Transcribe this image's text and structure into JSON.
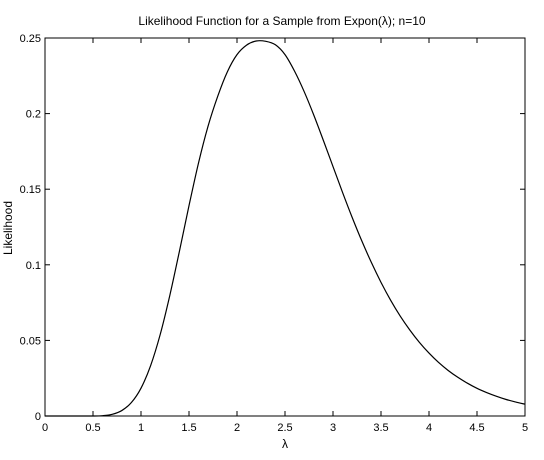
{
  "chart_data": {
    "type": "line",
    "title": "Likelihood Function for a Sample from Expon(λ); n=10",
    "xlabel": "λ",
    "ylabel": "Likelihood",
    "xlim": [
      0,
      5
    ],
    "ylim": [
      0,
      0.25
    ],
    "xticks": [
      0,
      0.5,
      1,
      1.5,
      2,
      2.5,
      3,
      3.5,
      4,
      4.5,
      5
    ],
    "xtick_labels": [
      "0",
      "0.5",
      "1",
      "1.5",
      "2",
      "2.5",
      "3",
      "3.5",
      "4",
      "4.5",
      "5"
    ],
    "yticks": [
      0,
      0.05,
      0.1,
      0.15,
      0.2,
      0.25
    ],
    "ytick_labels": [
      "0",
      "0.05",
      "0.1",
      "0.15",
      "0.2",
      "0.25"
    ],
    "grid": false,
    "line_color": "#000000",
    "series": [
      {
        "name": "",
        "x": [
          0.0,
          0.25,
          0.5,
          0.6,
          0.7,
          0.8,
          0.9,
          1.0,
          1.1,
          1.2,
          1.3,
          1.4,
          1.5,
          1.6,
          1.7,
          1.8,
          1.9,
          2.0,
          2.1,
          2.2,
          2.3,
          2.4,
          2.5,
          2.6,
          2.7,
          2.8,
          2.9,
          3.0,
          3.1,
          3.2,
          3.3,
          3.4,
          3.5,
          3.6,
          3.7,
          3.8,
          3.9,
          4.0,
          4.1,
          4.2,
          4.3,
          4.4,
          4.5,
          4.6,
          4.7,
          4.8,
          4.9,
          5.0
        ],
        "y": [
          0.0,
          0.0,
          0.0,
          0.0002,
          0.0011,
          0.0036,
          0.0089,
          0.0184,
          0.0333,
          0.0539,
          0.0797,
          0.1089,
          0.1391,
          0.1676,
          0.192,
          0.2116,
          0.2277,
          0.239,
          0.2453,
          0.248,
          0.2478,
          0.2455,
          0.239,
          0.228,
          0.2145,
          0.199,
          0.1822,
          0.165,
          0.1478,
          0.1313,
          0.1158,
          0.1015,
          0.0884,
          0.0766,
          0.0661,
          0.0569,
          0.0487,
          0.0416,
          0.0354,
          0.0301,
          0.0256,
          0.0217,
          0.0183,
          0.0155,
          0.0131,
          0.011,
          0.0093,
          0.0078
        ]
      }
    ]
  }
}
